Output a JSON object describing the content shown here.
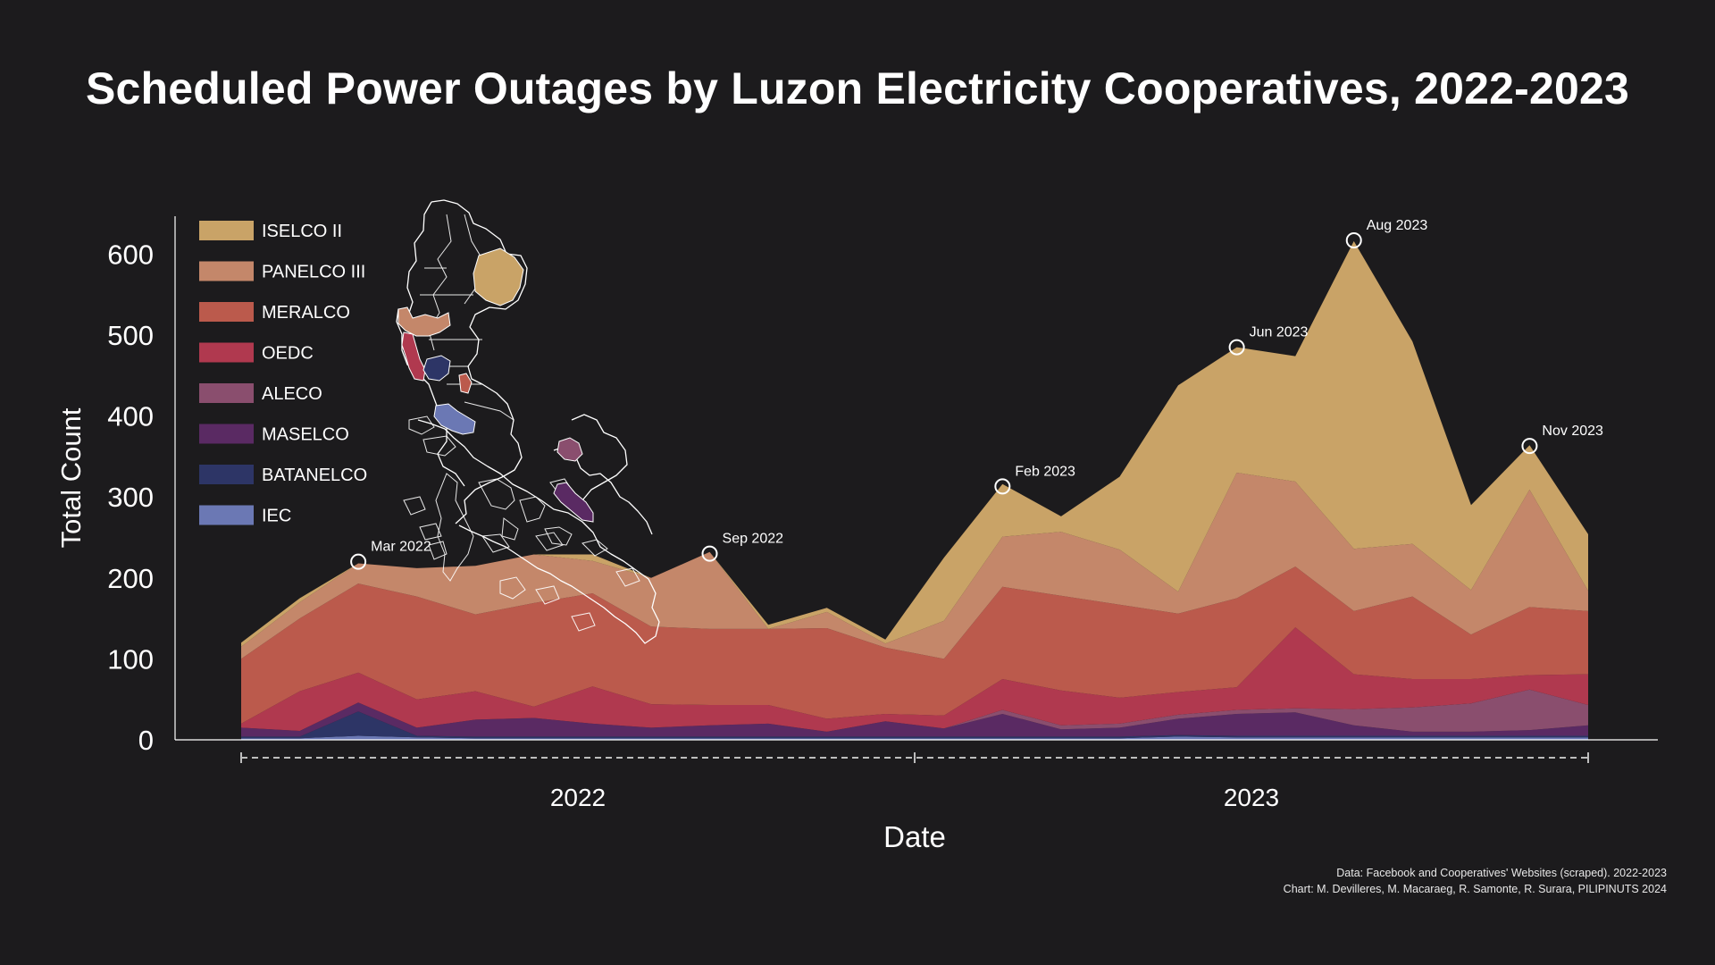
{
  "title": "Scheduled Power Outages by Luzon Electricity Cooperatives, 2022-2023",
  "source_lines": [
    "Data: Facebook and Cooperatives' Websites (scraped). 2022-2023",
    "Chart: M. Devilleres, M. Macaraeg, R. Samonte, R. Surara, PILIPINUTS 2024"
  ],
  "chart_data": {
    "type": "area",
    "stacked": true,
    "xlabel": "Date",
    "ylabel": "Total Count",
    "ylim": [
      0,
      650
    ],
    "yticks": [
      0,
      100,
      200,
      300,
      400,
      500,
      600
    ],
    "x": [
      "2022-01",
      "2022-02",
      "2022-03",
      "2022-04",
      "2022-05",
      "2022-06",
      "2022-07",
      "2022-08",
      "2022-09",
      "2022-10",
      "2022-11",
      "2022-12",
      "2023-01",
      "2023-02",
      "2023-03",
      "2023-04",
      "2023-05",
      "2023-06",
      "2023-07",
      "2023-08",
      "2023-09",
      "2023-10",
      "2023-11",
      "2023-12"
    ],
    "year_labels": [
      "2022",
      "2023"
    ],
    "series": [
      {
        "name": "IEC",
        "color": "#6b78b4",
        "values": [
          2,
          2,
          5,
          3,
          2,
          2,
          2,
          2,
          2,
          2,
          2,
          2,
          2,
          2,
          2,
          2,
          4,
          3,
          3,
          3,
          3,
          3,
          3,
          3
        ]
      },
      {
        "name": "BATANELCO",
        "color": "#2d3566",
        "values": [
          2,
          2,
          30,
          2,
          2,
          2,
          2,
          2,
          2,
          2,
          2,
          2,
          2,
          2,
          2,
          2,
          2,
          2,
          2,
          2,
          2,
          2,
          2,
          2
        ]
      },
      {
        "name": "MASELCO",
        "color": "#5a2a63",
        "values": [
          11,
          7,
          11,
          10,
          21,
          23,
          16,
          11,
          14,
          16,
          6,
          19,
          10,
          28,
          9,
          11,
          20,
          27,
          29,
          13,
          5,
          5,
          7,
          13
        ]
      },
      {
        "name": "ALECO",
        "color": "#8a4e6e",
        "values": [
          0,
          0,
          0,
          0,
          0,
          0,
          0,
          0,
          0,
          0,
          0,
          0,
          0,
          5,
          5,
          5,
          5,
          5,
          5,
          20,
          30,
          35,
          50,
          25
        ]
      },
      {
        "name": "OEDC",
        "color": "#b0394f",
        "values": [
          5,
          49,
          37,
          35,
          35,
          14,
          46,
          29,
          25,
          23,
          16,
          9,
          16,
          38,
          43,
          32,
          28,
          28,
          100,
          43,
          35,
          30,
          18,
          38
        ]
      },
      {
        "name": "MERALCO",
        "color": "#bb5a4c",
        "values": [
          80,
          90,
          110,
          127,
          95,
          128,
          115,
          96,
          94,
          94,
          112,
          82,
          70,
          114,
          117,
          115,
          97,
          110,
          75,
          78,
          102,
          55,
          84,
          78
        ]
      },
      {
        "name": "PANELCO III",
        "color": "#c4876a",
        "values": [
          15,
          20,
          25,
          35,
          60,
          60,
          40,
          60,
          95,
          0,
          20,
          5,
          47,
          62,
          79,
          68,
          27,
          155,
          105,
          77,
          65,
          55,
          145,
          25
        ]
      },
      {
        "name": "ISELCO II",
        "color": "#c9a367",
        "values": [
          5,
          5,
          0,
          0,
          0,
          0,
          8,
          0,
          0,
          5,
          5,
          5,
          78,
          65,
          19,
          90,
          255,
          155,
          155,
          380,
          250,
          105,
          55,
          70
        ]
      }
    ],
    "annotations": [
      {
        "label": "Mar 2022",
        "x": "2022-03",
        "y": 220
      },
      {
        "label": "Sep 2022",
        "x": "2022-09",
        "y": 230
      },
      {
        "label": "Feb 2023",
        "x": "2023-02",
        "y": 313
      },
      {
        "label": "Jun 2023",
        "x": "2023-06",
        "y": 485
      },
      {
        "label": "Aug 2023",
        "x": "2023-08",
        "y": 617
      },
      {
        "label": "Nov 2023",
        "x": "2023-11",
        "y": 363
      }
    ],
    "legend": {
      "position": "top-left",
      "order": [
        "ISELCO II",
        "PANELCO III",
        "MERALCO",
        "OEDC",
        "ALECO",
        "MASELCO",
        "BATANELCO",
        "IEC"
      ]
    },
    "inset_map": {
      "description_key": "luzon-map",
      "highlighted": [
        "ISELCO II",
        "PANELCO III",
        "OEDC",
        "MERALCO",
        "BATANELCO",
        "IEC",
        "ALECO",
        "MASELCO"
      ]
    },
    "grid": false
  }
}
